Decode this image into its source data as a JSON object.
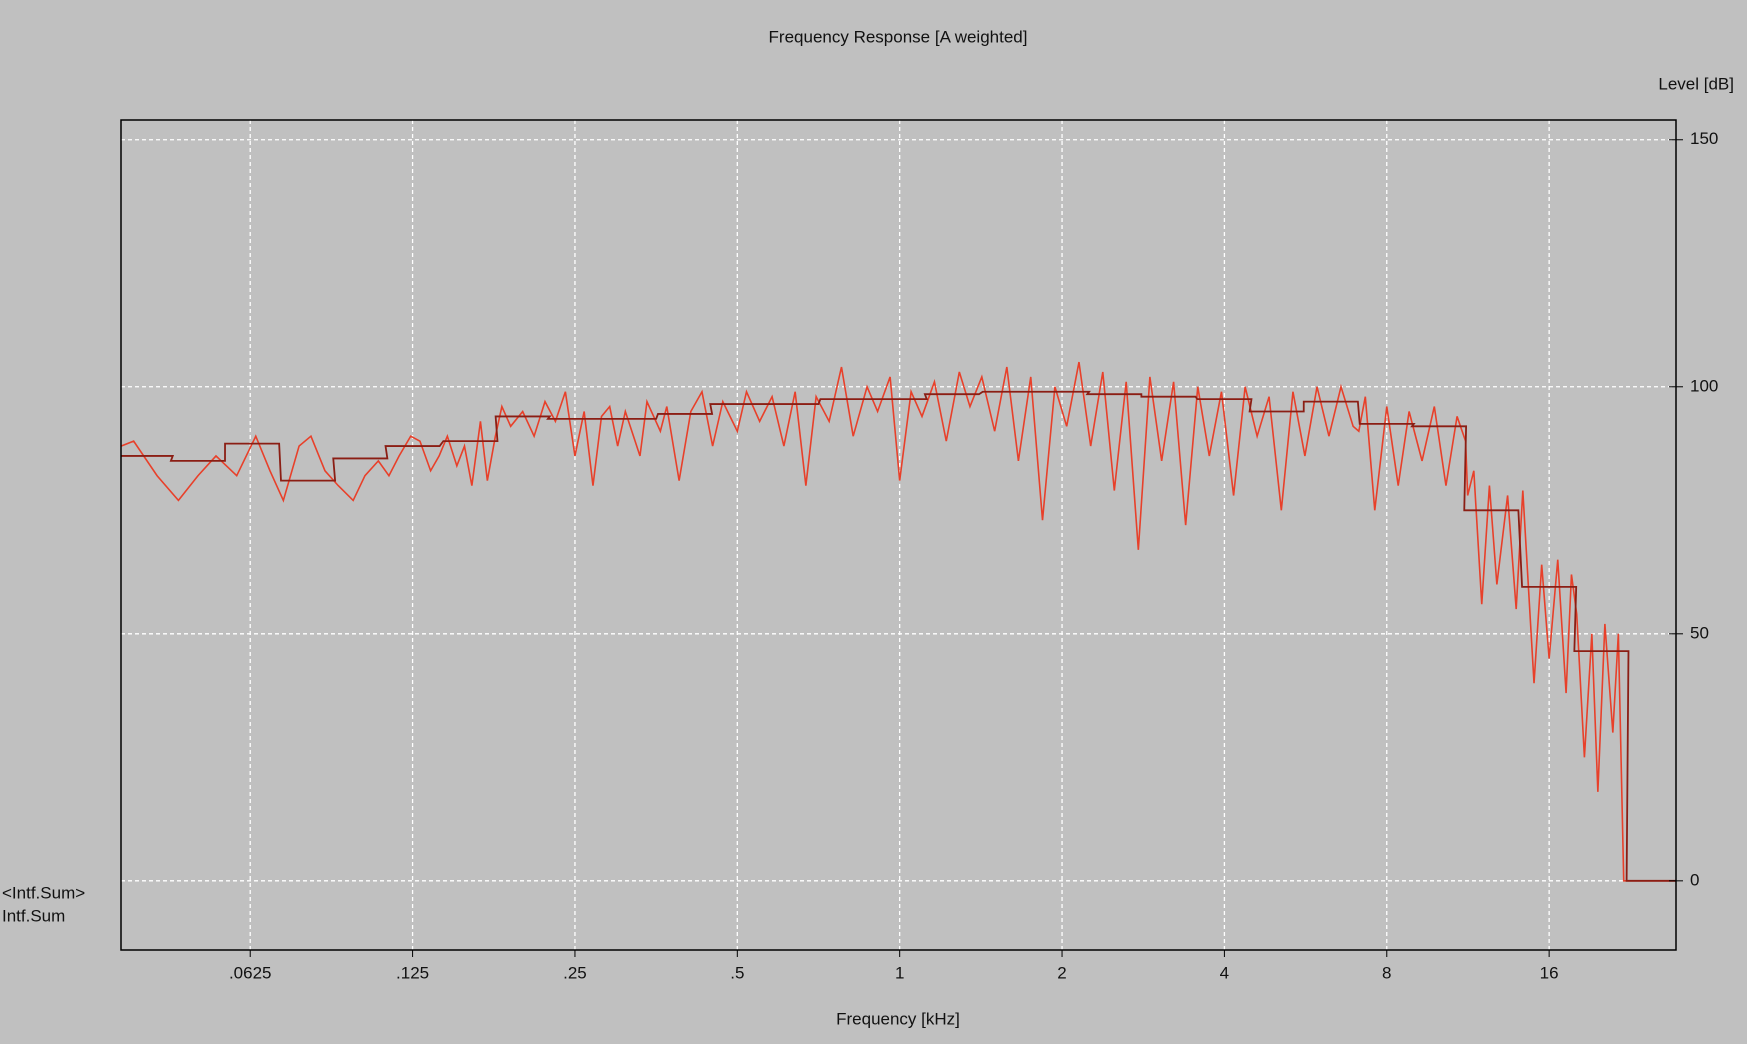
{
  "chart_data": {
    "type": "line",
    "title": "Frequency Response [A weighted]",
    "x_label": "Frequency [kHz]",
    "y_label": "Level [dB]",
    "x_scale": "log",
    "grid": true,
    "xlim": [
      0.036,
      27.5
    ],
    "ylim": [
      -14,
      154
    ],
    "xticks": [
      {
        "value": 0.0625,
        "label": ".0625"
      },
      {
        "value": 0.125,
        "label": ".125"
      },
      {
        "value": 0.25,
        "label": ".25"
      },
      {
        "value": 0.5,
        "label": ".5"
      },
      1,
      2,
      4,
      8,
      16
    ],
    "yticks": [
      0,
      50,
      100,
      150
    ],
    "series": [
      {
        "name": "Intf.Sum",
        "color": "#e8402a",
        "style": "line",
        "x": [
          0.036,
          0.038,
          0.042,
          0.046,
          0.05,
          0.054,
          0.059,
          0.064,
          0.068,
          0.072,
          0.077,
          0.081,
          0.086,
          0.091,
          0.097,
          0.102,
          0.108,
          0.113,
          0.118,
          0.124,
          0.129,
          0.135,
          0.14,
          0.145,
          0.151,
          0.156,
          0.161,
          0.167,
          0.172,
          0.178,
          0.183,
          0.19,
          0.2,
          0.21,
          0.22,
          0.23,
          0.24,
          0.25,
          0.26,
          0.27,
          0.28,
          0.29,
          0.3,
          0.31,
          0.33,
          0.34,
          0.36,
          0.37,
          0.39,
          0.41,
          0.43,
          0.45,
          0.47,
          0.5,
          0.52,
          0.55,
          0.58,
          0.61,
          0.64,
          0.67,
          0.7,
          0.74,
          0.78,
          0.82,
          0.87,
          0.91,
          0.96,
          1.0,
          1.05,
          1.1,
          1.16,
          1.22,
          1.29,
          1.35,
          1.42,
          1.5,
          1.58,
          1.66,
          1.75,
          1.84,
          1.94,
          2.04,
          2.15,
          2.26,
          2.38,
          2.5,
          2.63,
          2.77,
          2.91,
          3.06,
          3.22,
          3.39,
          3.57,
          3.75,
          3.95,
          4.16,
          4.37,
          4.6,
          4.84,
          5.1,
          5.36,
          5.64,
          5.94,
          6.25,
          6.58,
          6.93,
          7.1,
          7.3,
          7.6,
          8.0,
          8.4,
          8.8,
          9.3,
          9.8,
          10.3,
          10.8,
          11.2,
          11.3,
          11.6,
          12.0,
          12.4,
          12.8,
          13.4,
          13.9,
          14.3,
          14.6,
          15.0,
          15.5,
          16.0,
          16.6,
          17.2,
          17.6,
          18.0,
          18.6,
          19.2,
          19.7,
          20.3,
          21.0,
          21.5,
          22.0,
          27.5
        ],
        "values": [
          88,
          89,
          82,
          77,
          82,
          86,
          82,
          90,
          83,
          77,
          88,
          90,
          83,
          80,
          77,
          82,
          85,
          82,
          86,
          90,
          89,
          83,
          86,
          90,
          84,
          88,
          80,
          93,
          81,
          90,
          96,
          92,
          95,
          90,
          97,
          93,
          99,
          86,
          95,
          80,
          94,
          96,
          88,
          95,
          86,
          97,
          91,
          96,
          81,
          95,
          99,
          88,
          97,
          91,
          99,
          93,
          98,
          88,
          99,
          80,
          98,
          93,
          104,
          90,
          100,
          95,
          102,
          81,
          99,
          94,
          101,
          89,
          103,
          96,
          102,
          91,
          104,
          85,
          102,
          73,
          100,
          92,
          105,
          88,
          103,
          79,
          101,
          67,
          102,
          85,
          101,
          72,
          100,
          86,
          99,
          78,
          100,
          90,
          98,
          75,
          99,
          86,
          100,
          90,
          100,
          92,
          91,
          98,
          75,
          96,
          80,
          95,
          85,
          96,
          80,
          94,
          89,
          78,
          83,
          56,
          80,
          60,
          78,
          55,
          79,
          62,
          40,
          64,
          45,
          65,
          38,
          62,
          54,
          25,
          50,
          18,
          52,
          30,
          50,
          0,
          0
        ]
      },
      {
        "name": "<Intf.Sum>",
        "color": "#8b1e14",
        "style": "step",
        "x": [
          0.04,
          0.05,
          0.063,
          0.08,
          0.1,
          0.125,
          0.16,
          0.2,
          0.25,
          0.315,
          0.4,
          0.5,
          0.63,
          0.8,
          1,
          1.25,
          1.6,
          2,
          2.5,
          3.15,
          4,
          5,
          6.3,
          8,
          10,
          12.5,
          16,
          20,
          25
        ],
        "values": [
          86,
          85,
          88.5,
          81,
          85.5,
          88,
          89,
          94,
          93.5,
          93.5,
          94.5,
          96.5,
          96.5,
          97.5,
          97.5,
          98.5,
          99,
          99,
          98.5,
          98,
          97.5,
          95,
          97,
          92.5,
          92,
          75,
          59.5,
          46.5,
          0
        ]
      }
    ]
  }
}
